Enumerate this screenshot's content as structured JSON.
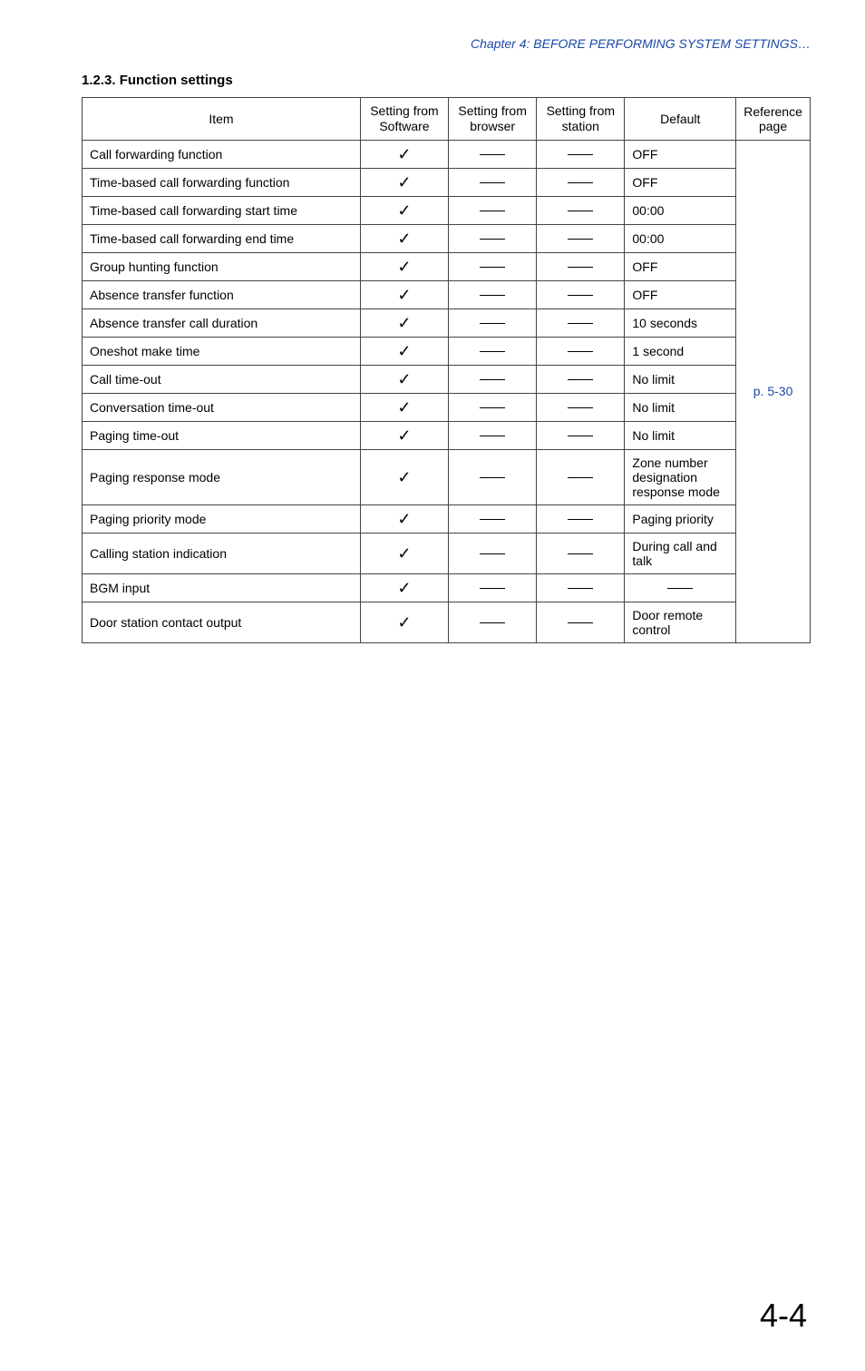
{
  "header": {
    "chapter_line": "Chapter 4:  BEFORE PERFORMING SYSTEM SETTINGS…"
  },
  "section": {
    "title": "1.2.3. Function settings"
  },
  "table": {
    "headers": {
      "item": "Item",
      "software": "Setting from Software",
      "browser": "Setting from browser",
      "station": "Setting from station",
      "default": "Default",
      "reference": "Reference page"
    },
    "reference_value": "p. 5-30",
    "rows": [
      {
        "item": "Call forwarding function",
        "indent": false,
        "sw": true,
        "browser": false,
        "station": false,
        "default": "OFF"
      },
      {
        "item": "Time-based call forwarding function",
        "indent": false,
        "sw": true,
        "browser": false,
        "station": false,
        "default": "OFF"
      },
      {
        "item": "Time-based call forwarding start time",
        "indent": true,
        "sw": true,
        "browser": false,
        "station": false,
        "default": "00:00"
      },
      {
        "item": "Time-based call forwarding end time",
        "indent": true,
        "sw": true,
        "browser": false,
        "station": false,
        "default": "00:00"
      },
      {
        "item": "Group hunting function",
        "indent": false,
        "sw": true,
        "browser": false,
        "station": false,
        "default": "OFF"
      },
      {
        "item": "Absence transfer function",
        "indent": false,
        "sw": true,
        "browser": false,
        "station": false,
        "default": "OFF"
      },
      {
        "item": "Absence transfer call duration",
        "indent": true,
        "sw": true,
        "browser": false,
        "station": false,
        "default": "10 seconds"
      },
      {
        "item": "Oneshot make time",
        "indent": false,
        "sw": true,
        "browser": false,
        "station": false,
        "default": "1 second"
      },
      {
        "item": "Call time-out",
        "indent": false,
        "sw": true,
        "browser": false,
        "station": false,
        "default": "No limit"
      },
      {
        "item": "Conversation time-out",
        "indent": false,
        "sw": true,
        "browser": false,
        "station": false,
        "default": "No limit"
      },
      {
        "item": "Paging time-out",
        "indent": false,
        "sw": true,
        "browser": false,
        "station": false,
        "default": "No limit"
      },
      {
        "item": "Paging response mode",
        "indent": false,
        "sw": true,
        "browser": false,
        "station": false,
        "default": "Zone number designation response mode"
      },
      {
        "item": "Paging priority mode",
        "indent": false,
        "sw": true,
        "browser": false,
        "station": false,
        "default": "Paging priority"
      },
      {
        "item": "Calling station indication",
        "indent": false,
        "sw": true,
        "browser": false,
        "station": false,
        "default": "During call and talk"
      },
      {
        "item": "BGM input",
        "indent": false,
        "sw": true,
        "browser": false,
        "station": false,
        "default": ""
      },
      {
        "item": "Door station contact output",
        "indent": false,
        "sw": true,
        "browser": false,
        "station": false,
        "default": "Door remote control"
      }
    ]
  },
  "footer": {
    "page_number": "4-4"
  },
  "glyphs": {
    "check": "✓"
  }
}
